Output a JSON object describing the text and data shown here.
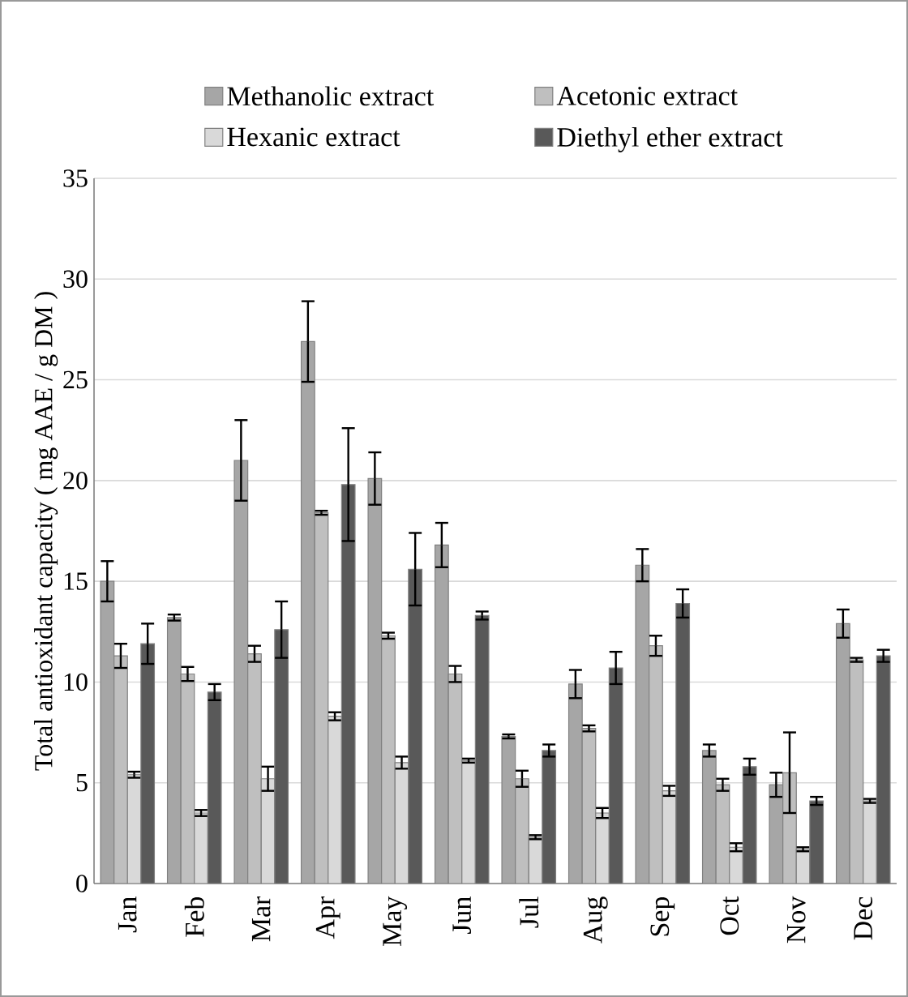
{
  "chart_data": {
    "type": "bar",
    "ylabel": "Total antioxidant capacity ( mg AAE / g DM )",
    "categories": [
      "Jan",
      "Feb",
      "Mar",
      "Apr",
      "May",
      "Jun",
      "Jul",
      "Aug",
      "Sep",
      "Oct",
      "Nov",
      "Dec"
    ],
    "series": [
      {
        "name": "Methanolic extract",
        "color": "#a6a6a6",
        "values": [
          15.0,
          13.2,
          21.0,
          26.9,
          20.1,
          16.8,
          7.3,
          9.9,
          15.8,
          6.6,
          4.9,
          12.9
        ],
        "errors": [
          1.0,
          0.15,
          2.0,
          2.0,
          1.3,
          1.1,
          0.1,
          0.7,
          0.8,
          0.3,
          0.6,
          0.7
        ]
      },
      {
        "name": "Acetonic extract",
        "color": "#bfbfbf",
        "values": [
          11.3,
          10.4,
          11.4,
          18.4,
          12.3,
          10.4,
          5.2,
          7.7,
          11.8,
          4.9,
          5.5,
          11.1
        ],
        "errors": [
          0.6,
          0.35,
          0.4,
          0.1,
          0.15,
          0.4,
          0.4,
          0.15,
          0.5,
          0.3,
          2.0,
          0.1
        ]
      },
      {
        "name": "Hexanic extract",
        "color": "#d9d9d9",
        "values": [
          5.4,
          3.5,
          5.2,
          8.3,
          6.0,
          6.1,
          2.3,
          3.5,
          4.6,
          1.8,
          1.7,
          4.1
        ],
        "errors": [
          0.15,
          0.15,
          0.6,
          0.2,
          0.3,
          0.1,
          0.1,
          0.25,
          0.25,
          0.2,
          0.1,
          0.1
        ]
      },
      {
        "name": "Diethyl ether extract",
        "color": "#595959",
        "values": [
          11.9,
          9.5,
          12.6,
          19.8,
          15.6,
          13.3,
          6.6,
          10.7,
          13.9,
          5.8,
          4.1,
          11.3
        ],
        "errors": [
          1.0,
          0.4,
          1.4,
          2.8,
          1.8,
          0.2,
          0.3,
          0.8,
          0.7,
          0.4,
          0.2,
          0.3
        ]
      }
    ],
    "ylim": [
      0,
      35
    ],
    "yticks": [
      0,
      5,
      10,
      15,
      20,
      25,
      30,
      35
    ],
    "grid": "y",
    "legend": "top"
  }
}
